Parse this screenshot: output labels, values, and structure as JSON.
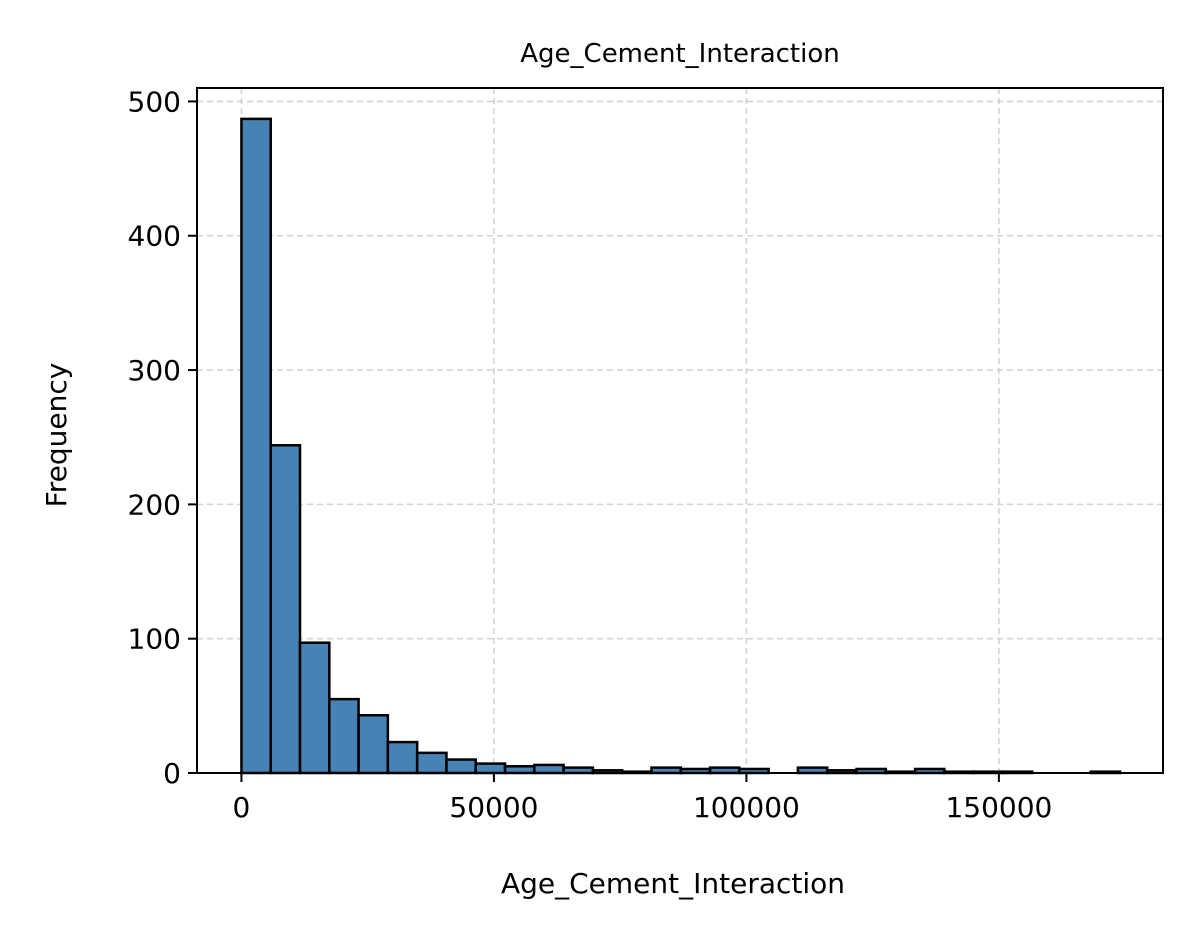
{
  "chart_data": {
    "type": "bar",
    "title": "Age_Cement_Interaction",
    "xlabel": "Age_Cement_Interaction",
    "ylabel": "Frequency",
    "xlim": [
      -8800,
      182500
    ],
    "ylim": [
      0,
      510
    ],
    "xticks": [
      0,
      50000,
      100000,
      150000
    ],
    "xtick_labels": [
      "0",
      "50000",
      "100000",
      "150000"
    ],
    "yticks": [
      0,
      100,
      200,
      300,
      400,
      500
    ],
    "ytick_labels": [
      "0",
      "100",
      "200",
      "300",
      "400",
      "500"
    ],
    "grid": true,
    "bar_color": "#4682b4",
    "edge_color": "#000000",
    "bins": [
      {
        "start": 0,
        "end": 5800,
        "value": 487
      },
      {
        "start": 5800,
        "end": 11600,
        "value": 244
      },
      {
        "start": 11600,
        "end": 17400,
        "value": 97
      },
      {
        "start": 17400,
        "end": 23200,
        "value": 55
      },
      {
        "start": 23200,
        "end": 29000,
        "value": 43
      },
      {
        "start": 29000,
        "end": 34800,
        "value": 23
      },
      {
        "start": 34800,
        "end": 40600,
        "value": 15
      },
      {
        "start": 40600,
        "end": 46400,
        "value": 10
      },
      {
        "start": 46400,
        "end": 52200,
        "value": 7
      },
      {
        "start": 52200,
        "end": 58000,
        "value": 5
      },
      {
        "start": 58000,
        "end": 63800,
        "value": 6
      },
      {
        "start": 63800,
        "end": 69600,
        "value": 4
      },
      {
        "start": 69600,
        "end": 75400,
        "value": 2
      },
      {
        "start": 75400,
        "end": 81200,
        "value": 1
      },
      {
        "start": 81200,
        "end": 87000,
        "value": 4
      },
      {
        "start": 87000,
        "end": 92800,
        "value": 3
      },
      {
        "start": 92800,
        "end": 98600,
        "value": 4
      },
      {
        "start": 98600,
        "end": 104400,
        "value": 3
      },
      {
        "start": 104400,
        "end": 110200,
        "value": 0
      },
      {
        "start": 110200,
        "end": 116000,
        "value": 4
      },
      {
        "start": 116000,
        "end": 121800,
        "value": 2
      },
      {
        "start": 121800,
        "end": 127600,
        "value": 3
      },
      {
        "start": 127600,
        "end": 133400,
        "value": 1
      },
      {
        "start": 133400,
        "end": 139200,
        "value": 3
      },
      {
        "start": 139200,
        "end": 145000,
        "value": 1
      },
      {
        "start": 145000,
        "end": 150800,
        "value": 1
      },
      {
        "start": 150800,
        "end": 156600,
        "value": 1
      },
      {
        "start": 156600,
        "end": 162400,
        "value": 0
      },
      {
        "start": 162400,
        "end": 168200,
        "value": 0
      },
      {
        "start": 168200,
        "end": 174000,
        "value": 1
      }
    ]
  }
}
